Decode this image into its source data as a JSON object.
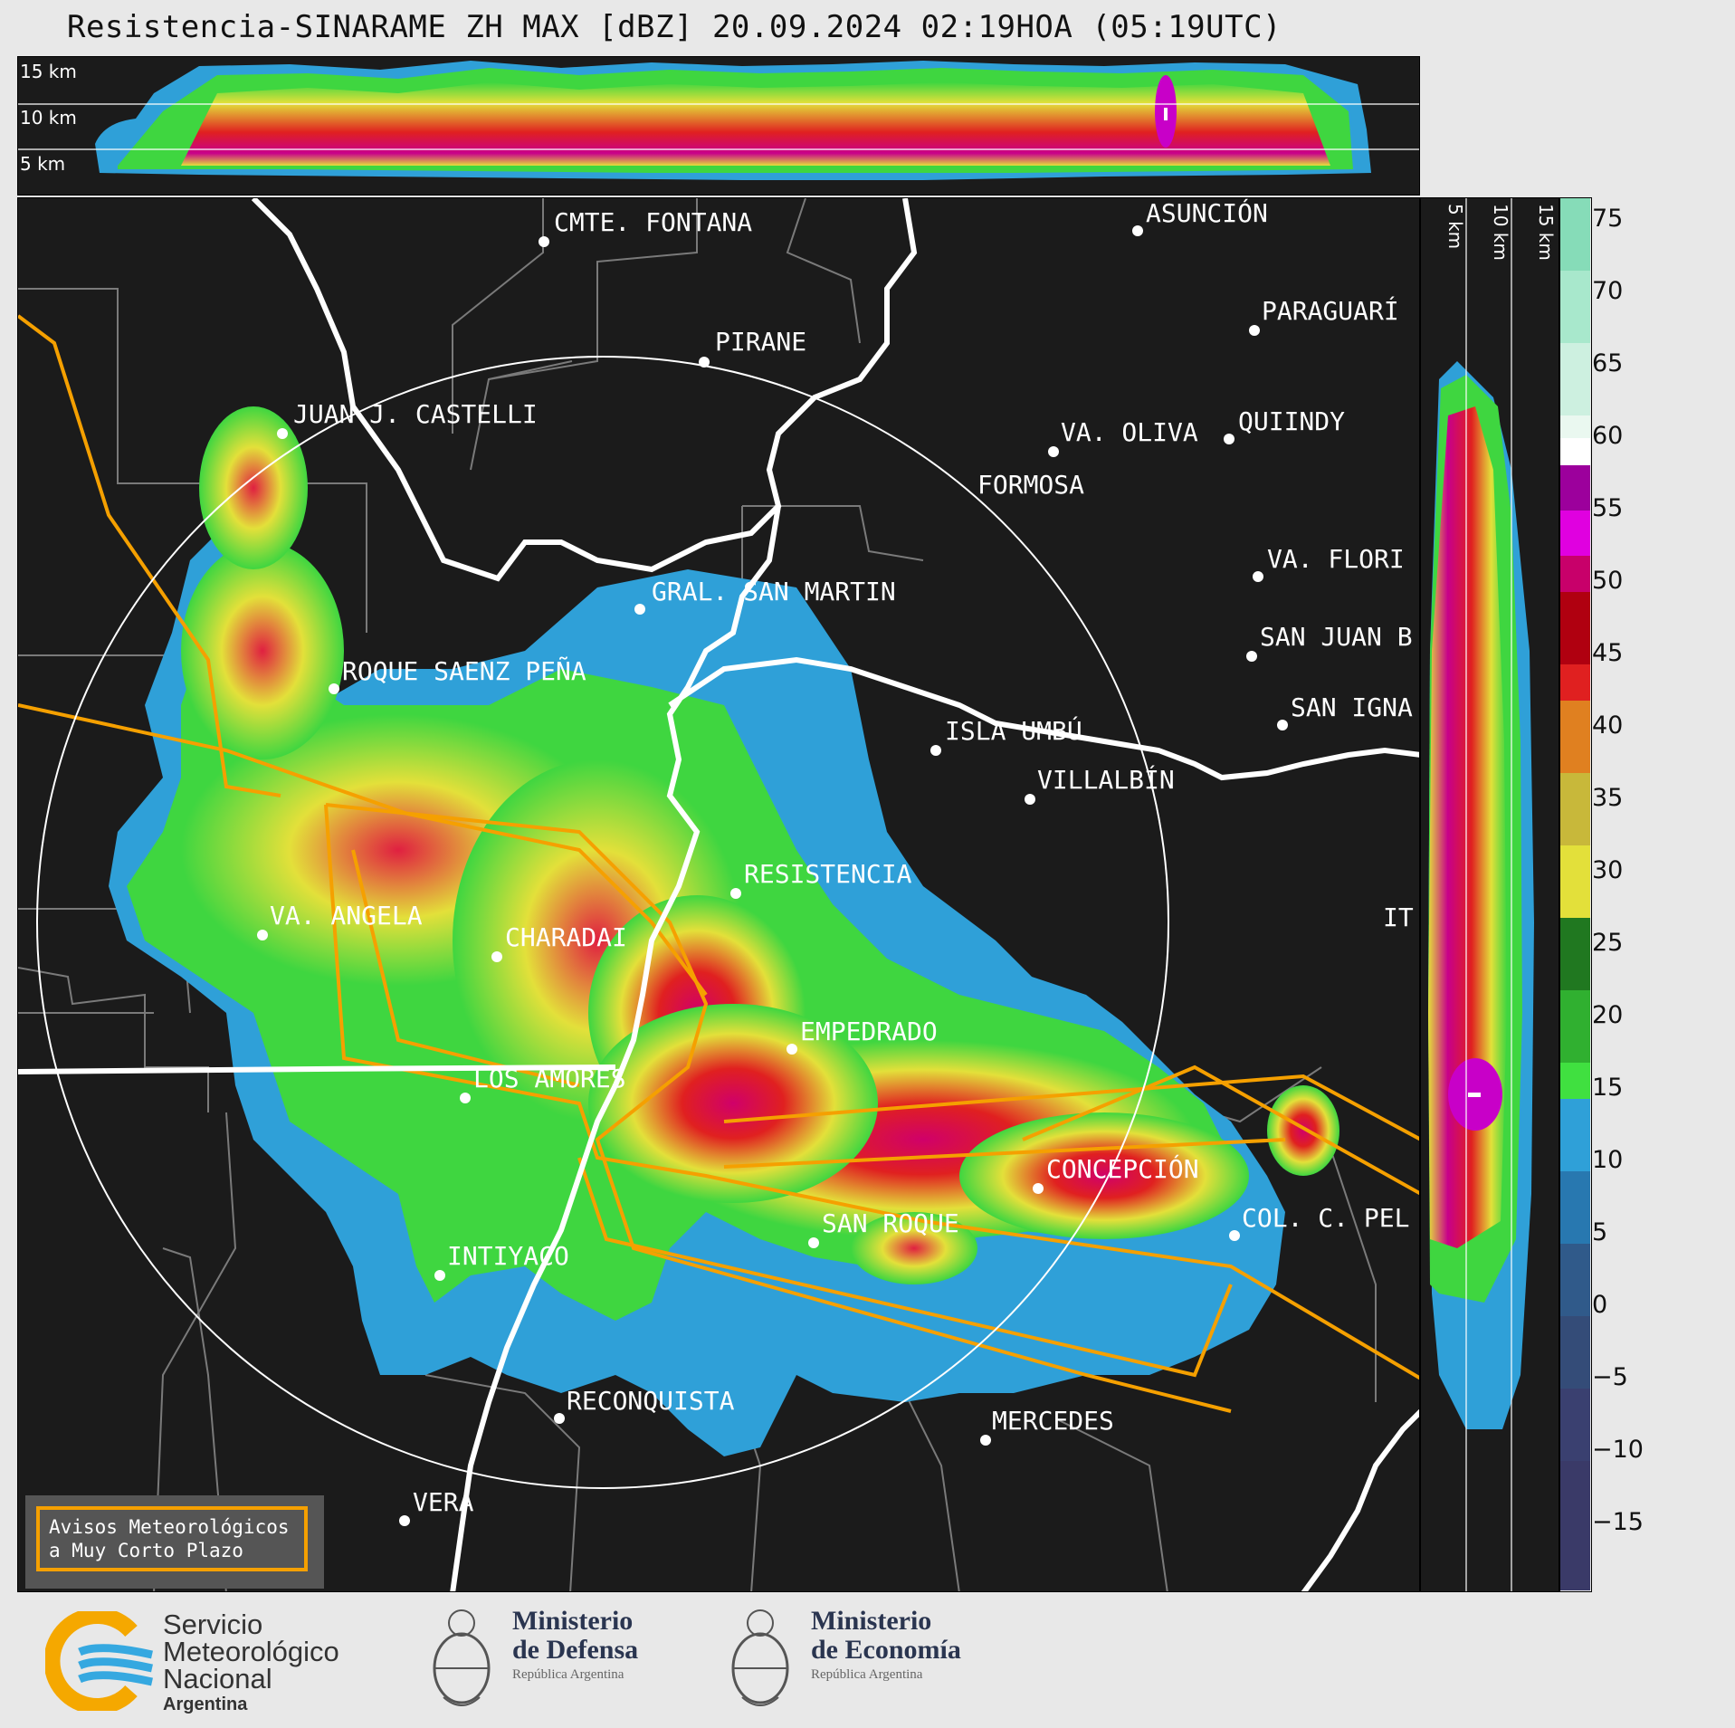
{
  "title": "Resistencia-SINARAME ZH MAX [dBZ] 20.09.2024 02:19HOA (05:19UTC)",
  "top_section": {
    "height_labels": [
      "15 km",
      "10 km",
      "5 km"
    ]
  },
  "right_section": {
    "height_labels": [
      "5 km",
      "10 km",
      "15 km"
    ]
  },
  "colorbar": {
    "unit": "dBZ",
    "ticks": [
      "75",
      "70",
      "65",
      "60",
      "55",
      "50",
      "45",
      "40",
      "35",
      "30",
      "25",
      "20",
      "15",
      "10",
      "5",
      "0",
      "−5",
      "−10",
      "−15"
    ]
  },
  "cities": [
    {
      "name": "CMTE. FONTANA"
    },
    {
      "name": "ASUNCIÓN"
    },
    {
      "name": "PARAGUARÍ"
    },
    {
      "name": "PIRANE"
    },
    {
      "name": "JUAN J. CASTELLI"
    },
    {
      "name": "QUIINDY"
    },
    {
      "name": "VA. OLIVA"
    },
    {
      "name": "FORMOSA"
    },
    {
      "name": "VA. FLORI"
    },
    {
      "name": "GRAL. SAN MARTIN"
    },
    {
      "name": "SAN JUAN B"
    },
    {
      "name": "ROQUE SAENZ PEÑA"
    },
    {
      "name": "SAN IGNA"
    },
    {
      "name": "ISLA UMBÚ"
    },
    {
      "name": "VILLALBÍN"
    },
    {
      "name": "RESISTENCIA"
    },
    {
      "name": "VA. ANGELA"
    },
    {
      "name": "CHARADAI"
    },
    {
      "name": "IT"
    },
    {
      "name": "EMPEDRADO"
    },
    {
      "name": "LOS AMORES"
    },
    {
      "name": "CONCEPCIÓN"
    },
    {
      "name": "SAN ROQUE"
    },
    {
      "name": "COL. C. PEL"
    },
    {
      "name": "INTIYACO"
    },
    {
      "name": "RECONQUISTA"
    },
    {
      "name": "MERCEDES"
    },
    {
      "name": "VERA"
    }
  ],
  "notice": {
    "line1": "Avisos Meteorológicos",
    "line2": "a Muy Corto Plazo"
  },
  "logos": {
    "smn": {
      "line1": "Servicio",
      "line2": "Meteorológico",
      "line3": "Nacional",
      "line4": "Argentina"
    },
    "defensa": {
      "line1": "Ministerio",
      "line2": "de Defensa",
      "line3": "República Argentina"
    },
    "economia": {
      "line1": "Ministerio",
      "line2": "de Economía",
      "line3": "República Argentina"
    }
  }
}
